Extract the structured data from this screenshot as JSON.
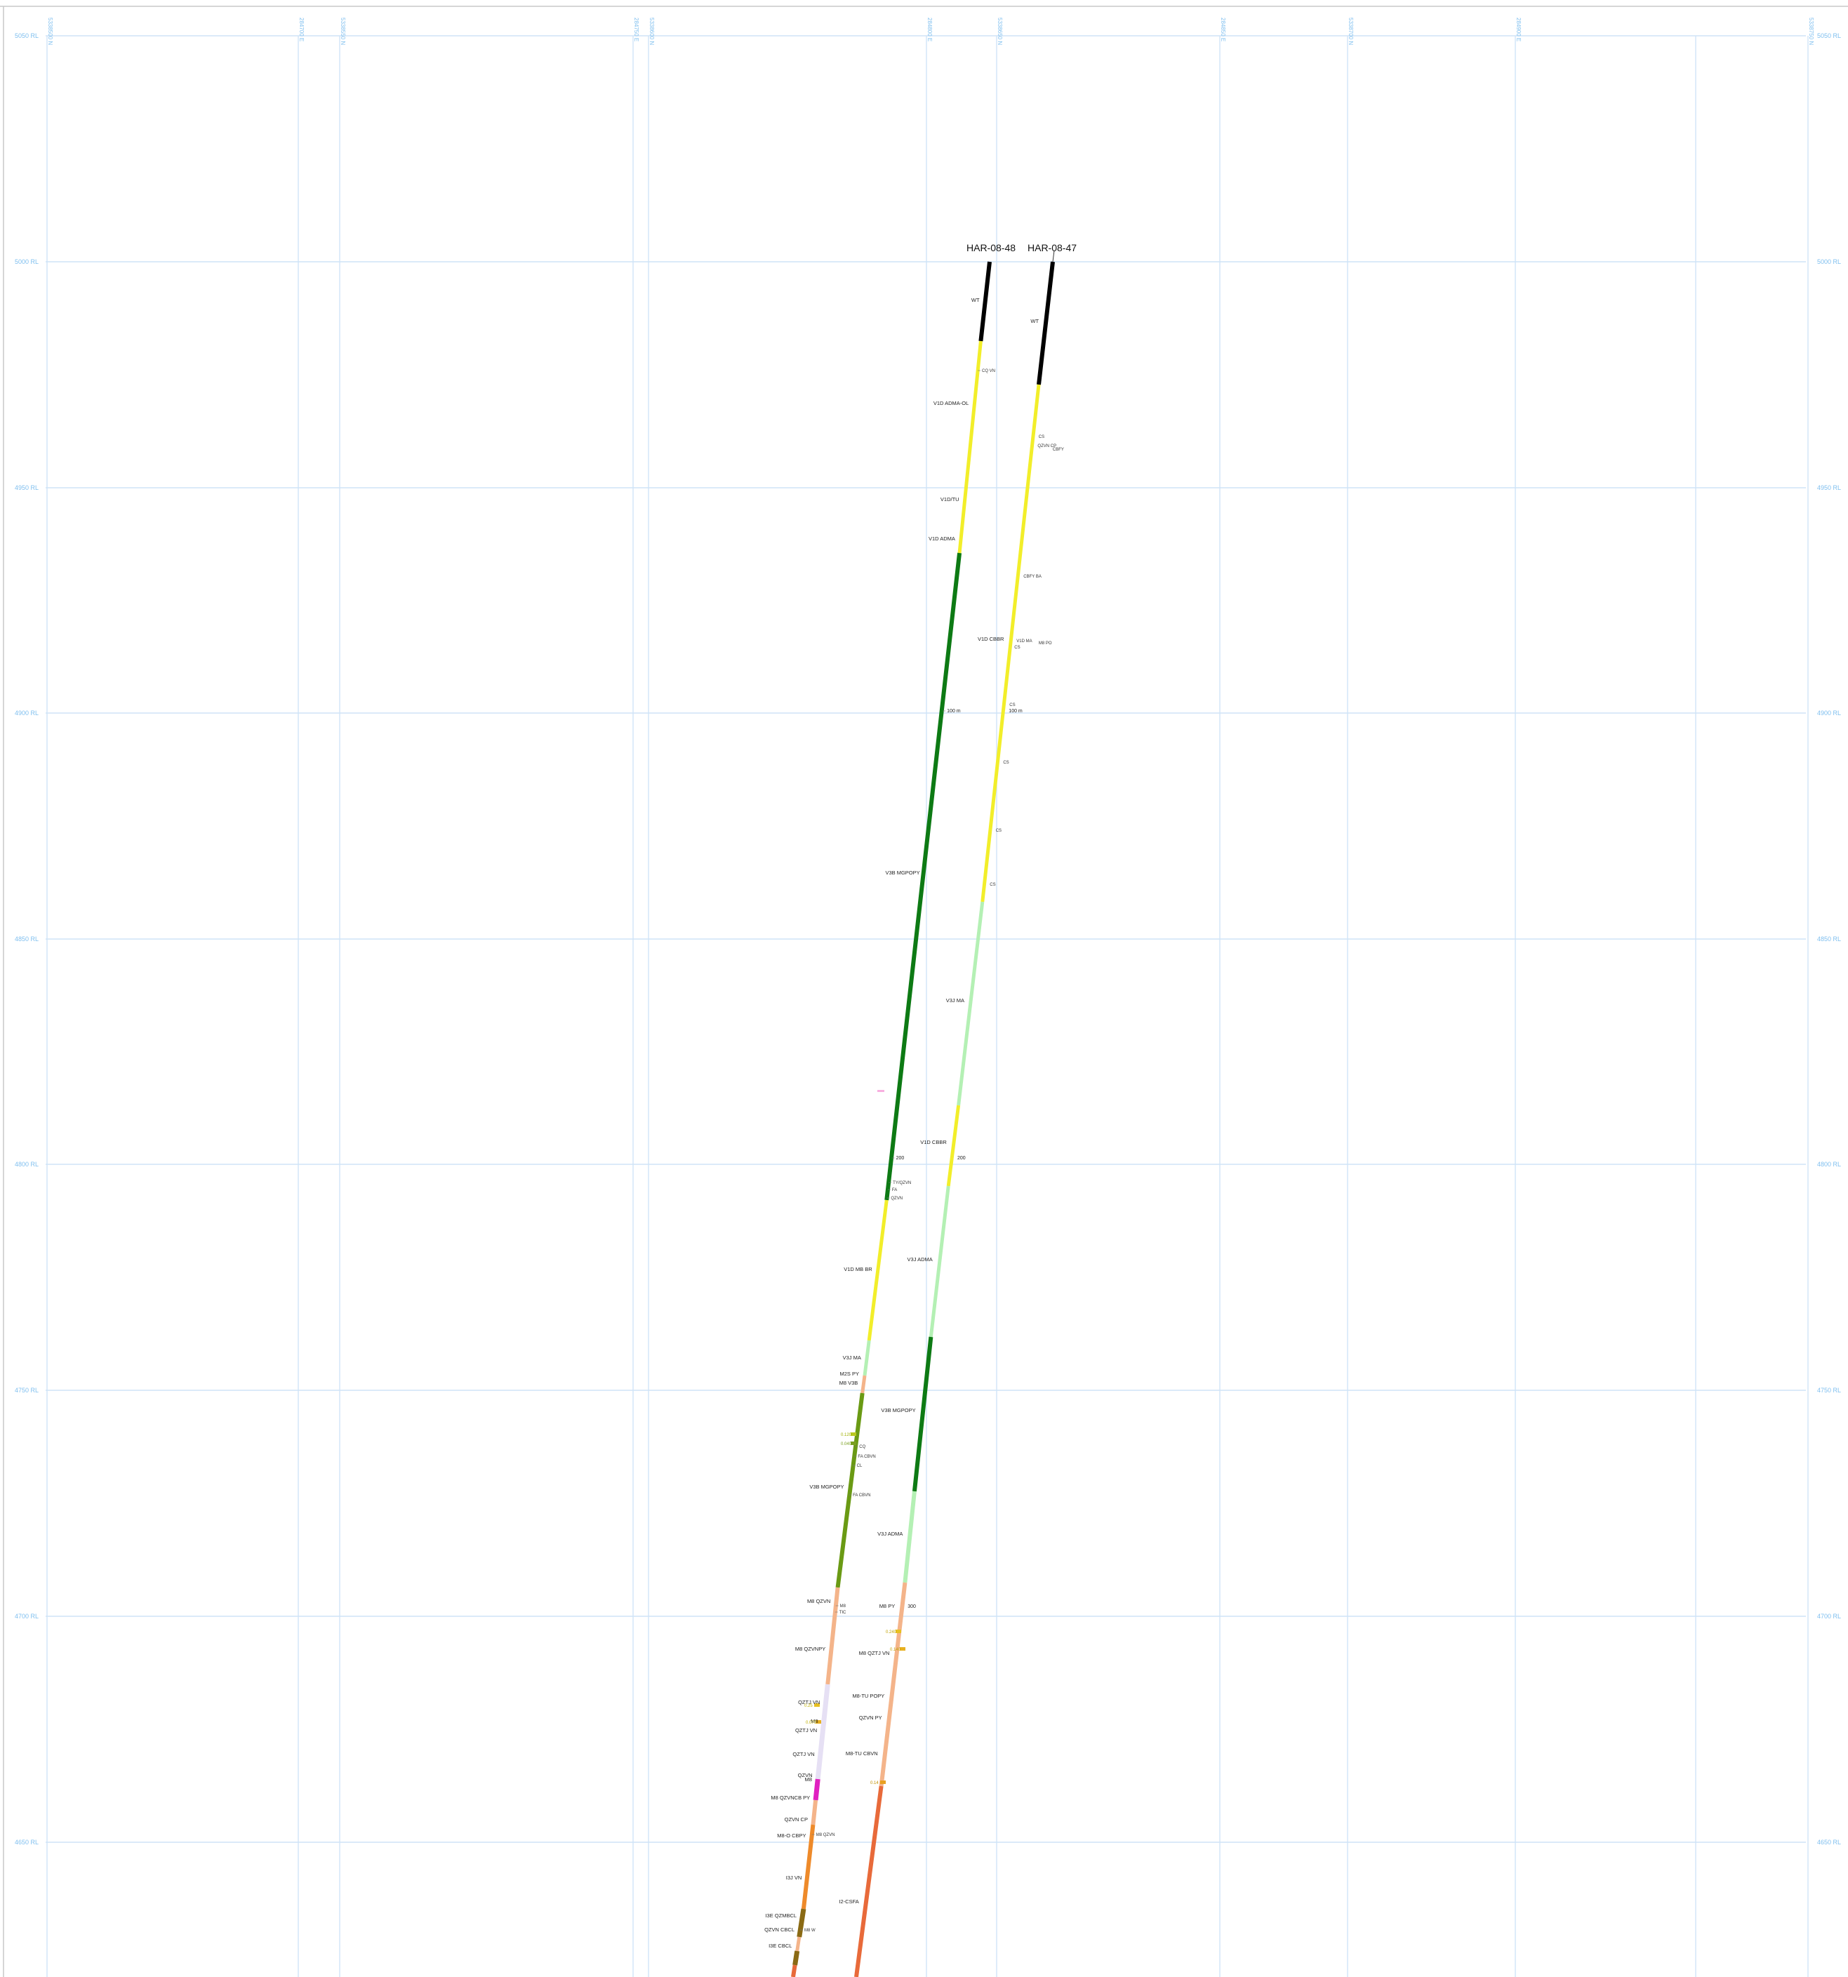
{
  "rl_levels": [
    "5050 RL",
    "5000 RL",
    "4950 RL",
    "4900 RL",
    "4850 RL",
    "4800 RL",
    "4750 RL",
    "4700 RL",
    "4650 RL"
  ],
  "grid_coords": [
    {
      "label": "5338500 N"
    },
    {
      "label": "284700 E"
    },
    {
      "label": "5338550 N"
    },
    {
      "label": "284750 E"
    },
    {
      "label": "5338600 N"
    },
    {
      "label": "284800 E"
    },
    {
      "label": "5338650 N"
    },
    {
      "label": "284850 E"
    },
    {
      "label": "5338700 N"
    },
    {
      "label": "284900 E"
    },
    {
      "label": "5338750 N"
    }
  ],
  "holes": [
    {
      "name": "HAR-08-48"
    },
    {
      "name": "HAR-08-47"
    }
  ],
  "hole48": {
    "labels": [
      {
        "text": "WT"
      },
      {
        "text": "V1D ADMA-OL"
      },
      {
        "text": "V1D/TU"
      },
      {
        "text": "V1D ADMA"
      },
      {
        "text": "V3B MGPOPY"
      },
      {
        "text": "V1D MB BR"
      },
      {
        "text": "V3J MA"
      },
      {
        "text": "M2S PY"
      },
      {
        "text": "M8 V3B"
      },
      {
        "text": "V3B MGPOPY"
      },
      {
        "text": "M8 QZVN"
      },
      {
        "text": "M8 QZVNPY"
      },
      {
        "text": "QZTJ VN"
      },
      {
        "text": "M8"
      },
      {
        "text": "QZTJ VN"
      },
      {
        "text": "QZTJ VN"
      },
      {
        "text": "QZVN"
      },
      {
        "text": "M8"
      },
      {
        "text": "M8 QZVNCB PY"
      },
      {
        "text": "QZVN CP"
      },
      {
        "text": "M8-O CBPY"
      },
      {
        "text": "I3J VN"
      },
      {
        "text": "I3E QZMBCL"
      },
      {
        "text": "QZVN CBCL"
      },
      {
        "text": "I3E CBCL"
      }
    ],
    "small": [
      {
        "text": "CQ VN"
      },
      {
        "text": "100 m"
      },
      {
        "text": "200"
      },
      {
        "text": "TY/QZVN"
      },
      {
        "text": "FA"
      },
      {
        "text": "QZVN"
      },
      {
        "text": "CQ"
      },
      {
        "text": "FA CBVN"
      },
      {
        "text": "CL"
      },
      {
        "text": "FA CBVN"
      },
      {
        "text": "M8"
      },
      {
        "text": "TIC"
      },
      {
        "text": "M8 QZVN"
      },
      {
        "text": "M8 W"
      }
    ]
  },
  "hole47": {
    "labels": [
      {
        "text": "WT"
      },
      {
        "text": "V1D CBBR"
      },
      {
        "text": "V3J MA"
      },
      {
        "text": "V1D CBBR"
      },
      {
        "text": "V3J ADMA"
      },
      {
        "text": "V3B MGPOPY"
      },
      {
        "text": "V3J ADMA"
      },
      {
        "text": "M8 PY"
      },
      {
        "text": "M8 QZTJ VN"
      },
      {
        "text": "M8-TU POPY"
      },
      {
        "text": "QZVN PY"
      },
      {
        "text": "M8-TU CBVN"
      },
      {
        "text": "I2-CSFA"
      }
    ],
    "small": [
      {
        "text": "CS"
      },
      {
        "text": "QZVN CP"
      },
      {
        "text": "CBFY"
      },
      {
        "text": "CBFY BA"
      },
      {
        "text": "V1D MA"
      },
      {
        "text": "M8 PO"
      },
      {
        "text": "CS"
      },
      {
        "text": "CS"
      },
      {
        "text": "100 m"
      },
      {
        "text": "CS"
      },
      {
        "text": "CS"
      },
      {
        "text": "CS"
      },
      {
        "text": "200"
      },
      {
        "text": "300"
      }
    ]
  },
  "value_marks": [
    {
      "text": "0.120"
    },
    {
      "text": "0.040"
    },
    {
      "text": "0.25"
    },
    {
      "text": "0.070"
    },
    {
      "text": "0.240"
    },
    {
      "text": "0.140"
    },
    {
      "text": "0.14"
    }
  ],
  "colors": {
    "grid": "#cfe4f7",
    "label": "#7fbfef",
    "black": "#000000",
    "yellow": "#f2ee2a",
    "dark_green": "#0d7a14",
    "olive_green": "#6a9a14",
    "light_green": "#b4f0b4",
    "peach": "#f4b48a",
    "orange": "#ee8a2a",
    "red_orange": "#e86a3a",
    "brown": "#8a6a14",
    "purple_light": "#e6e0f4",
    "magenta": "#e020c0"
  }
}
